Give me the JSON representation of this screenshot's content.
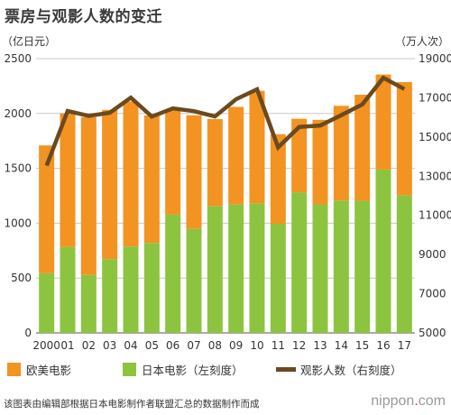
{
  "chart_data": {
    "type": "bar",
    "title": "票房与观影人数的变迁",
    "left_unit": "（亿日元）",
    "right_unit": "（万人次）",
    "categories": [
      "2000",
      "01",
      "02",
      "03",
      "04",
      "05",
      "06",
      "07",
      "08",
      "09",
      "10",
      "11",
      "12",
      "13",
      "14",
      "15",
      "16",
      "17"
    ],
    "stacked": true,
    "series": [
      {
        "name": "日本电影（左刻度）",
        "color": "#8cc43f",
        "axis": "left",
        "values": [
          544,
          784,
          528,
          672,
          788,
          821,
          1078,
          948,
          1158,
          1173,
          1182,
          995,
          1282,
          1172,
          1207,
          1204,
          1489,
          1255
        ]
      },
      {
        "name": "欧美电影",
        "color": "#f39322",
        "axis": "left",
        "values": [
          1165,
          1216,
          1438,
          1361,
          1322,
          1161,
          950,
          1036,
          791,
          887,
          1025,
          816,
          670,
          770,
          863,
          967,
          866,
          1031
        ]
      },
      {
        "name": "观影人数（右刻度）",
        "color": "#6b4a1e",
        "axis": "right",
        "type": "line",
        "values": [
          13539,
          16328,
          16077,
          16235,
          17009,
          16045,
          16459,
          16319,
          16049,
          16929,
          17435,
          14473,
          15516,
          15589,
          16112,
          16663,
          18019,
          17448
        ]
      }
    ],
    "ylim_left": [
      0,
      2500
    ],
    "yticks_left": [
      0,
      500,
      1000,
      1500,
      2000,
      2500
    ],
    "ylim_right": [
      5000,
      19000
    ],
    "yticks_right": [
      5000,
      7000,
      9000,
      11000,
      13000,
      15000,
      17000,
      19000
    ],
    "grid": true
  },
  "legend": {
    "western": "欧美电影",
    "japanese": "日本电影（左刻度）",
    "attendance": "观影人数（右刻度）"
  },
  "footer": {
    "source": "该图表由编辑部根据日本电影制作者联盟汇总的数据制作而成",
    "brand_name": "nippon",
    "brand_dot": ".",
    "brand_tld": "com"
  }
}
